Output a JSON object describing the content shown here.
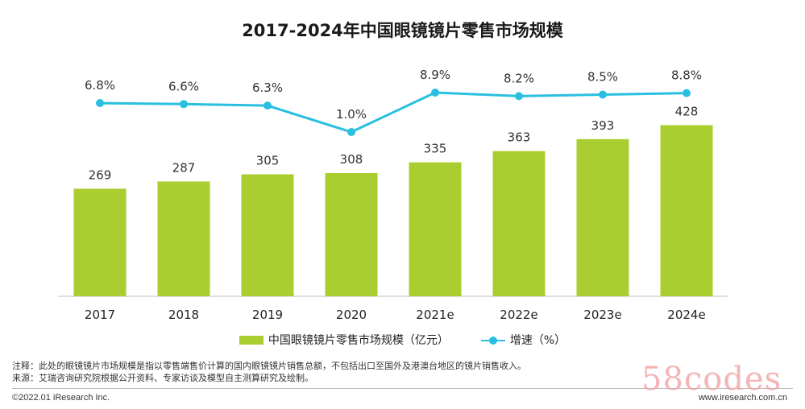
{
  "title": "2017-2024年中国眼镜镜片零售市场规模",
  "chart_data": {
    "type": "bar",
    "title": "2017-2024年中国眼镜镜片零售市场规模",
    "categories": [
      "2017",
      "2018",
      "2019",
      "2020",
      "2021e",
      "2022e",
      "2023e",
      "2024e"
    ],
    "series": [
      {
        "name": "中国眼镜镜片零售市场规模（亿元）",
        "type": "bar",
        "values": [
          269,
          287,
          305,
          308,
          335,
          363,
          393,
          428
        ],
        "labels": [
          "269",
          "287",
          "305",
          "308",
          "335",
          "363",
          "393",
          "428"
        ]
      },
      {
        "name": "增速（%）",
        "type": "line",
        "values": [
          6.8,
          6.6,
          6.3,
          1.0,
          8.9,
          8.2,
          8.5,
          8.8
        ],
        "labels": [
          "6.8%",
          "6.6%",
          "6.3%",
          "1.0%",
          "8.9%",
          "8.2%",
          "8.5%",
          "8.8%"
        ]
      }
    ],
    "colors": {
      "bar": "#aacd2f",
      "line": "#29bfe0",
      "axis": "#bfbfbf"
    }
  },
  "legend": {
    "bar_label": "中国眼镜镜片零售市场规模（亿元）",
    "line_label": "增速（%）"
  },
  "notes": {
    "note": "注释：此处的眼镜镜片市场规模是指以零售端售价计算的国内眼镜镜片销售总额，不包括出口至国外及港澳台地区的镜片销售收入。",
    "source": "来源：艾瑞咨询研究院根据公开资料、专家访谈及模型自主测算研究及绘制。"
  },
  "footer": {
    "copyright": "©2022.01 iResearch Inc.",
    "website": "www.iresearch.com.cn"
  },
  "watermark": "58codes"
}
